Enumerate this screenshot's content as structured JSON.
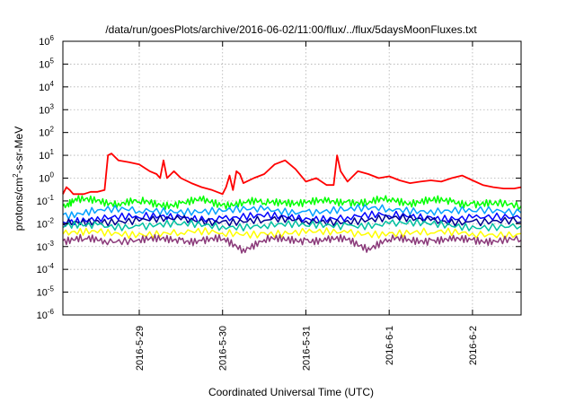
{
  "chart_data": {
    "type": "line",
    "title": "/data/run/goesPlots/archive/2016-06-02/11:00/flux/../flux/5daysMoonFluxes.txt",
    "xlabel": "Coordinated Universal Time (UTC)",
    "ylabel": {
      "base": "protons/cm",
      "exp": "2",
      "rest": "-s-sr-MeV"
    },
    "yscale": "log",
    "ylim": [
      1e-06,
      1000000.0
    ],
    "xlim": [
      "2016-05-28T02:00",
      "2016-06-02T14:00"
    ],
    "grid": true,
    "legend": "none",
    "y_ticks": [
      {
        "value": 1e-06,
        "base": "10",
        "exp": "-6"
      },
      {
        "value": 1e-05,
        "base": "10",
        "exp": "-5"
      },
      {
        "value": 0.0001,
        "base": "10",
        "exp": "-4"
      },
      {
        "value": 0.001,
        "base": "10",
        "exp": "-3"
      },
      {
        "value": 0.01,
        "base": "10",
        "exp": "-2"
      },
      {
        "value": 0.1,
        "base": "10",
        "exp": "-1"
      },
      {
        "value": 1.0,
        "base": "10",
        "exp": "0"
      },
      {
        "value": 10.0,
        "base": "10",
        "exp": "1"
      },
      {
        "value": 100.0,
        "base": "10",
        "exp": "2"
      },
      {
        "value": 1000.0,
        "base": "10",
        "exp": "3"
      },
      {
        "value": 10000.0,
        "base": "10",
        "exp": "4"
      },
      {
        "value": 100000.0,
        "base": "10",
        "exp": "5"
      },
      {
        "value": 1000000.0,
        "base": "10",
        "exp": "6"
      }
    ],
    "x_ticks": [
      {
        "value": "2016-05-29T00:00",
        "label": "2016-5-29"
      },
      {
        "value": "2016-05-30T00:00",
        "label": "2016-5-30"
      },
      {
        "value": "2016-05-31T00:00",
        "label": "2016-5-31"
      },
      {
        "value": "2016-06-01T00:00",
        "label": "2016-6-1"
      },
      {
        "value": "2016-06-02T00:00",
        "label": "2016-6-2"
      }
    ],
    "series": [
      {
        "color": "#ff0000",
        "x": [
          "2016-05-28T02:00",
          "2016-05-28T03:00",
          "2016-05-28T04:00",
          "2016-05-28T05:00",
          "2016-05-28T06:00",
          "2016-05-28T08:00",
          "2016-05-28T10:00",
          "2016-05-28T12:00",
          "2016-05-28T14:00",
          "2016-05-28T15:00",
          "2016-05-28T16:00",
          "2016-05-28T18:00",
          "2016-05-28T21:00",
          "2016-05-29T00:00",
          "2016-05-29T03:00",
          "2016-05-29T05:00",
          "2016-05-29T06:00",
          "2016-05-29T07:00",
          "2016-05-29T08:00",
          "2016-05-29T10:00",
          "2016-05-29T12:00",
          "2016-05-29T15:00",
          "2016-05-29T18:00",
          "2016-05-29T21:00",
          "2016-05-30T00:00",
          "2016-05-30T01:00",
          "2016-05-30T02:00",
          "2016-05-30T03:00",
          "2016-05-30T04:00",
          "2016-05-30T05:00",
          "2016-05-30T06:00",
          "2016-05-30T09:00",
          "2016-05-30T12:00",
          "2016-05-30T15:00",
          "2016-05-30T18:00",
          "2016-05-30T21:00",
          "2016-05-31T00:00",
          "2016-05-31T03:00",
          "2016-05-31T06:00",
          "2016-05-31T08:00",
          "2016-05-31T09:00",
          "2016-05-31T10:00",
          "2016-05-31T12:00",
          "2016-05-31T15:00",
          "2016-05-31T18:00",
          "2016-05-31T21:00",
          "2016-06-01T00:00",
          "2016-06-01T03:00",
          "2016-06-01T06:00",
          "2016-06-01T09:00",
          "2016-06-01T12:00",
          "2016-06-01T15:00",
          "2016-06-01T18:00",
          "2016-06-01T21:00",
          "2016-06-02T00:00",
          "2016-06-02T03:00",
          "2016-06-02T06:00",
          "2016-06-02T09:00",
          "2016-06-02T12:00",
          "2016-06-02T14:00"
        ],
        "y": [
          0.2,
          0.4,
          0.3,
          0.2,
          0.2,
          0.2,
          0.25,
          0.25,
          0.3,
          10,
          12,
          6,
          5,
          4,
          2,
          1.5,
          1,
          6,
          1,
          2,
          1,
          0.6,
          0.4,
          0.3,
          0.2,
          0.4,
          1.3,
          0.3,
          2,
          1.5,
          0.6,
          1,
          1.5,
          4,
          6,
          2.5,
          0.7,
          1,
          0.5,
          0.5,
          10,
          2,
          0.7,
          2,
          1.5,
          1,
          1.2,
          0.8,
          0.6,
          0.7,
          0.8,
          0.7,
          1,
          1.3,
          0.8,
          0.5,
          0.4,
          0.35,
          0.35,
          0.4
        ]
      },
      {
        "color": "#00ff00",
        "x": [
          "2016-05-28T02:00",
          "2016-05-28T06:00",
          "2016-05-28T12:00",
          "2016-05-28T18:00",
          "2016-05-29T00:00",
          "2016-05-29T06:00",
          "2016-05-29T12:00",
          "2016-05-29T18:00",
          "2016-05-30T00:00",
          "2016-05-30T06:00",
          "2016-05-30T12:00",
          "2016-05-30T18:00",
          "2016-05-31T00:00",
          "2016-05-31T06:00",
          "2016-05-31T12:00",
          "2016-05-31T18:00",
          "2016-06-01T00:00",
          "2016-06-01T06:00",
          "2016-06-01T12:00",
          "2016-06-01T18:00",
          "2016-06-02T00:00",
          "2016-06-02T06:00",
          "2016-06-02T14:00"
        ],
        "y": [
          0.06,
          0.1,
          0.11,
          0.08,
          0.09,
          0.07,
          0.08,
          0.1,
          0.07,
          0.09,
          0.08,
          0.1,
          0.08,
          0.09,
          0.1,
          0.08,
          0.12,
          0.09,
          0.1,
          0.09,
          0.08,
          0.07,
          0.06
        ]
      },
      {
        "color": "#00a0ff",
        "x": [
          "2016-05-28T02:00",
          "2016-05-28T12:00",
          "2016-05-29T00:00",
          "2016-05-29T12:00",
          "2016-05-30T00:00",
          "2016-05-30T12:00",
          "2016-05-31T00:00",
          "2016-05-31T12:00",
          "2016-06-01T00:00",
          "2016-06-01T12:00",
          "2016-06-02T00:00",
          "2016-06-02T14:00"
        ],
        "y": [
          0.025,
          0.04,
          0.035,
          0.04,
          0.035,
          0.04,
          0.035,
          0.04,
          0.045,
          0.04,
          0.035,
          0.03
        ]
      },
      {
        "color": "#0000ff",
        "x": [
          "2016-05-28T02:00",
          "2016-05-28T12:00",
          "2016-05-29T00:00",
          "2016-05-29T12:00",
          "2016-05-30T00:00",
          "2016-05-30T12:00",
          "2016-05-31T00:00",
          "2016-05-31T12:00",
          "2016-06-01T00:00",
          "2016-06-01T12:00",
          "2016-06-02T00:00",
          "2016-06-02T14:00"
        ],
        "y": [
          0.012,
          0.02,
          0.018,
          0.02,
          0.017,
          0.02,
          0.018,
          0.02,
          0.022,
          0.02,
          0.018,
          0.016
        ]
      },
      {
        "color": "#000090",
        "x": [
          "2016-05-28T02:00",
          "2016-05-28T12:00",
          "2016-05-29T00:00",
          "2016-05-29T12:00",
          "2016-05-30T00:00",
          "2016-05-30T12:00",
          "2016-05-31T00:00",
          "2016-05-31T12:00",
          "2016-06-01T00:00",
          "2016-06-01T12:00",
          "2016-06-02T00:00",
          "2016-06-02T14:00"
        ],
        "y": [
          0.01,
          0.014,
          0.013,
          0.015,
          0.013,
          0.014,
          0.013,
          0.014,
          0.016,
          0.014,
          0.013,
          0.012
        ]
      },
      {
        "color": "#00c0a0",
        "x": [
          "2016-05-28T02:00",
          "2016-05-28T12:00",
          "2016-05-29T00:00",
          "2016-05-29T12:00",
          "2016-05-30T00:00",
          "2016-05-30T12:00",
          "2016-05-31T00:00",
          "2016-05-31T12:00",
          "2016-06-01T00:00",
          "2016-06-01T12:00",
          "2016-06-02T00:00",
          "2016-06-02T14:00"
        ],
        "y": [
          0.007,
          0.009,
          0.008,
          0.009,
          0.008,
          0.009,
          0.008,
          0.009,
          0.01,
          0.009,
          0.008,
          0.008
        ]
      },
      {
        "color": "#ffff00",
        "x": [
          "2016-05-28T02:00",
          "2016-05-28T12:00",
          "2016-05-29T00:00",
          "2016-05-29T12:00",
          "2016-05-30T00:00",
          "2016-05-30T12:00",
          "2016-05-31T00:00",
          "2016-05-31T12:00",
          "2016-06-01T00:00",
          "2016-06-01T12:00",
          "2016-06-02T00:00",
          "2016-06-02T14:00"
        ],
        "y": [
          0.0035,
          0.004,
          0.0038,
          0.004,
          0.0038,
          0.004,
          0.0038,
          0.004,
          0.004,
          0.0039,
          0.0038,
          0.0037
        ]
      },
      {
        "color": "#8b3a7a",
        "x": [
          "2016-05-28T02:00",
          "2016-05-28T08:00",
          "2016-05-28T14:00",
          "2016-05-29T00:00",
          "2016-05-29T06:00",
          "2016-05-29T12:00",
          "2016-05-29T18:00",
          "2016-05-30T00:00",
          "2016-05-30T06:00",
          "2016-05-30T12:00",
          "2016-05-30T18:00",
          "2016-05-31T00:00",
          "2016-05-31T06:00",
          "2016-05-31T12:00",
          "2016-05-31T18:00",
          "2016-06-01T00:00",
          "2016-06-01T06:00",
          "2016-06-01T12:00",
          "2016-06-01T18:00",
          "2016-06-02T00:00",
          "2016-06-02T06:00",
          "2016-06-02T14:00"
        ],
        "y": [
          0.0018,
          0.002,
          0.0019,
          0.0021,
          0.0019,
          0.002,
          0.0018,
          0.002,
          0.0008,
          0.002,
          0.0019,
          0.002,
          0.0018,
          0.002,
          0.0009,
          0.002,
          0.0019,
          0.002,
          0.0018,
          0.002,
          0.0019,
          0.0019
        ]
      }
    ]
  }
}
